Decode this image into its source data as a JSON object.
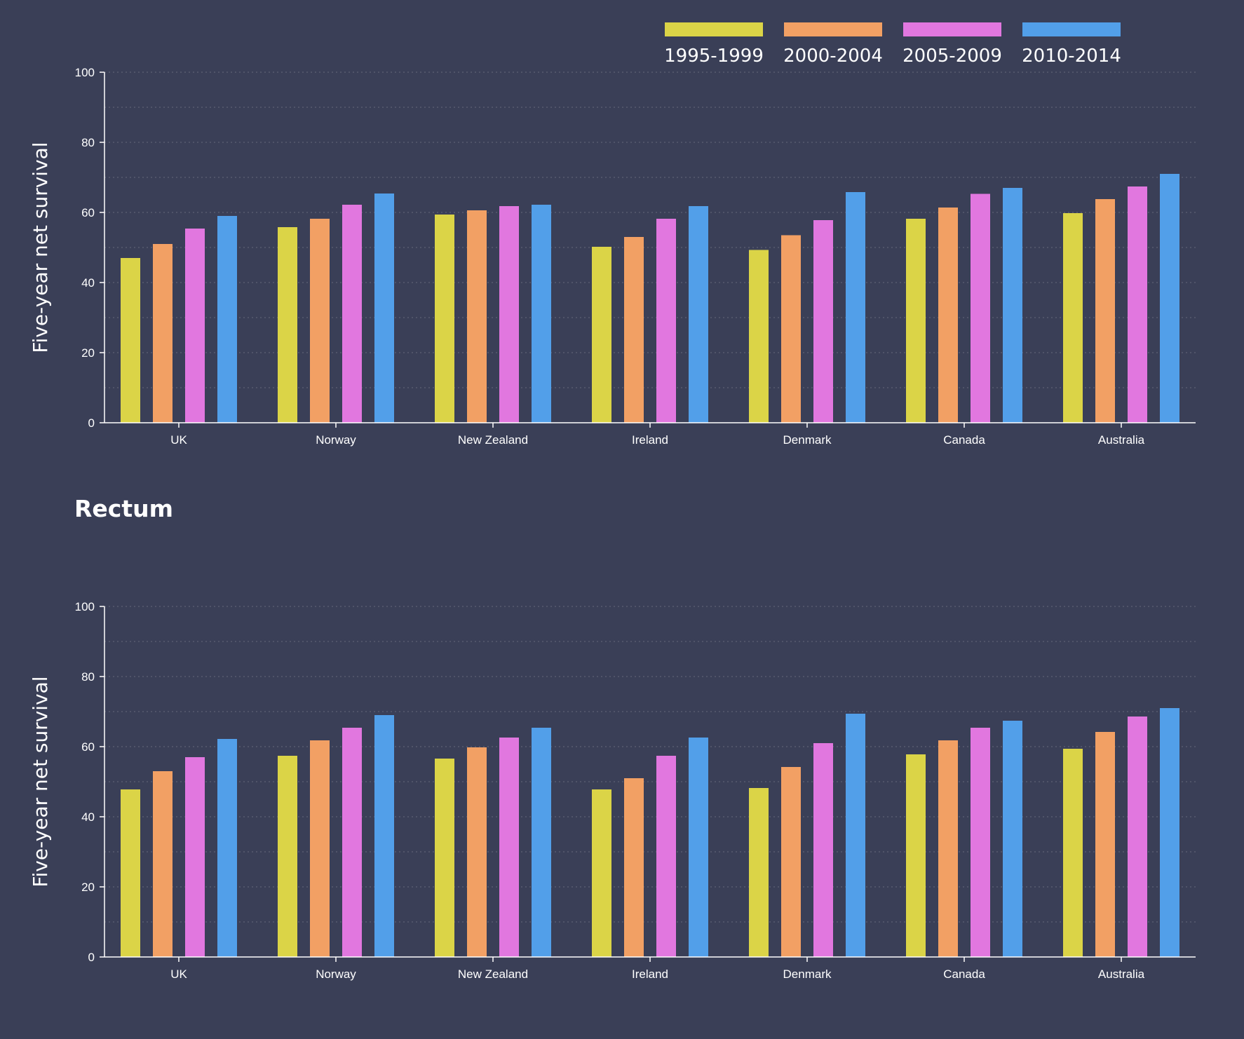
{
  "legend": [
    {
      "label": "1995-1999",
      "color": "#dbd447"
    },
    {
      "label": "2000-2004",
      "color": "#f2a064"
    },
    {
      "label": "2005-2009",
      "color": "#e177df"
    },
    {
      "label": "2010-2014",
      "color": "#529fe9"
    }
  ],
  "chart_data": [
    {
      "type": "bar",
      "title": "",
      "xlabel": "",
      "ylabel": "Five-year net survival",
      "ylim": [
        0,
        100
      ],
      "yticks": [
        0,
        20,
        40,
        60,
        80,
        100
      ],
      "grid": true,
      "legend_position": "top-right",
      "categories": [
        "UK",
        "Norway",
        "New Zealand",
        "Ireland",
        "Denmark",
        "Canada",
        "Australia"
      ],
      "series": [
        {
          "name": "1995-1999",
          "values": [
            47.0,
            55.8,
            59.4,
            50.2,
            49.3,
            58.2,
            59.8
          ]
        },
        {
          "name": "2000-2004",
          "values": [
            51.0,
            58.2,
            60.6,
            53.0,
            53.5,
            61.4,
            63.8
          ]
        },
        {
          "name": "2005-2009",
          "values": [
            55.4,
            62.2,
            61.8,
            58.2,
            57.8,
            65.3,
            67.4
          ]
        },
        {
          "name": "2010-2014",
          "values": [
            59.0,
            65.4,
            62.2,
            61.8,
            65.8,
            67.0,
            71.0
          ]
        }
      ]
    },
    {
      "type": "bar",
      "title": "Rectum",
      "xlabel": "",
      "ylabel": "Five-year net survival",
      "ylim": [
        0,
        100
      ],
      "yticks": [
        0,
        20,
        40,
        60,
        80,
        100
      ],
      "grid": true,
      "categories": [
        "UK",
        "Norway",
        "New Zealand",
        "Ireland",
        "Denmark",
        "Canada",
        "Australia"
      ],
      "series": [
        {
          "name": "1995-1999",
          "values": [
            47.8,
            57.4,
            56.6,
            47.8,
            48.2,
            57.8,
            59.4
          ]
        },
        {
          "name": "2000-2004",
          "values": [
            53.0,
            61.8,
            59.8,
            51.0,
            54.2,
            61.8,
            64.2
          ]
        },
        {
          "name": "2005-2009",
          "values": [
            57.0,
            65.4,
            62.6,
            57.4,
            61.0,
            65.4,
            68.6
          ]
        },
        {
          "name": "2010-2014",
          "values": [
            62.2,
            69.0,
            65.4,
            62.6,
            69.4,
            67.4,
            71.0
          ]
        }
      ]
    }
  ]
}
